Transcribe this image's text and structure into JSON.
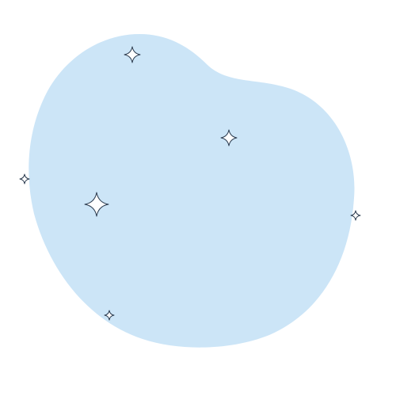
{
  "colors": {
    "background": "#ffffff",
    "blob_fill": "#cce5f7",
    "sparkle_fill": "#ffffff",
    "sparkle_stroke": "#2b3b4f"
  },
  "icons": {
    "sparkle": "four-point-star-icon"
  },
  "decorations": {
    "sparkle_count": 6
  }
}
